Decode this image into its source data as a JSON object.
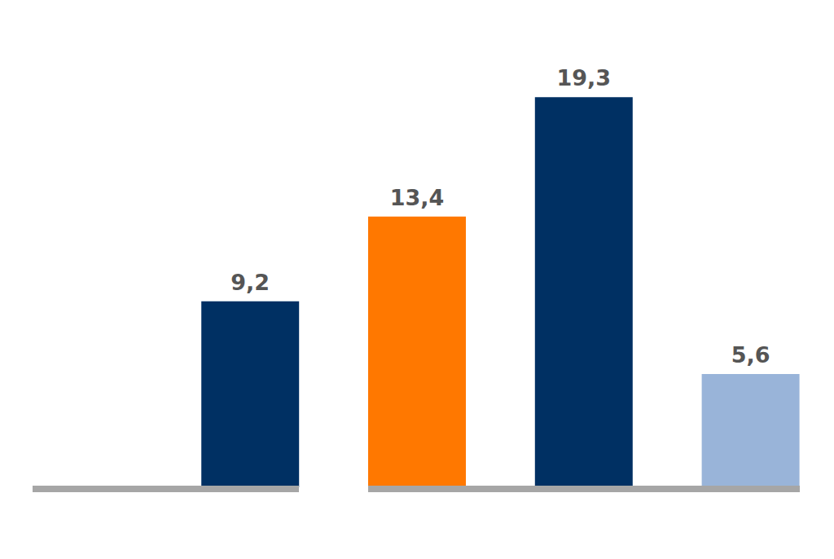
{
  "chart_data": {
    "type": "bar",
    "categories": [
      null,
      null,
      null,
      null,
      null
    ],
    "values": [
      null,
      9.2,
      13.4,
      19.3,
      5.6
    ],
    "value_labels": [
      null,
      "9,2",
      "13,4",
      "19,3",
      "5,6"
    ],
    "colors": [
      null,
      "#003063",
      "#ff7800",
      "#003063",
      "#99b4d9"
    ],
    "ylim": [
      0,
      20
    ],
    "grid": false,
    "data_labels": true,
    "tick_labels": false
  }
}
